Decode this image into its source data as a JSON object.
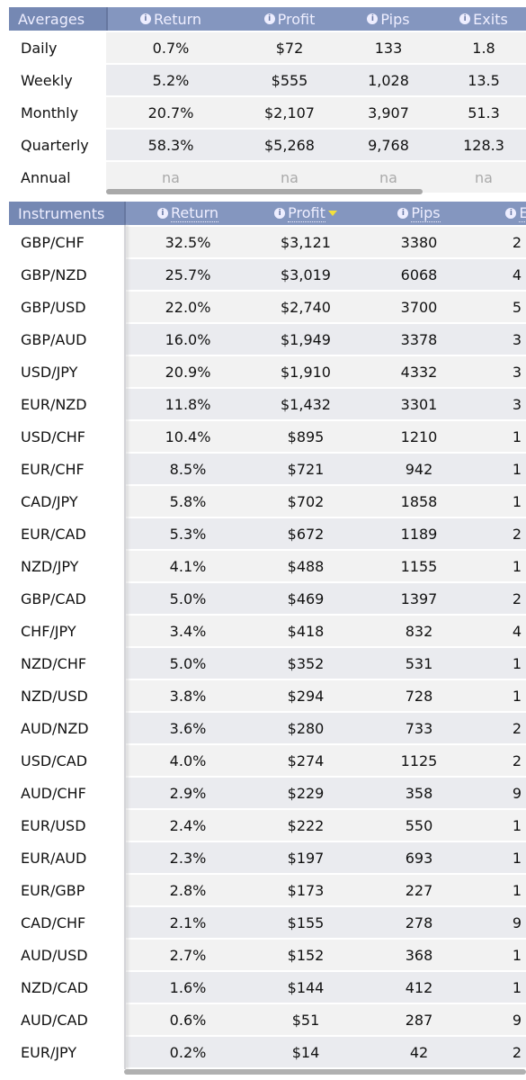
{
  "averages": {
    "columns": [
      "Averages",
      "Return",
      "Profit",
      "Pips",
      "Exits"
    ],
    "rows": [
      [
        "Daily",
        "0.7%",
        "$72",
        "133",
        "1.8"
      ],
      [
        "Weekly",
        "5.2%",
        "$555",
        "1,028",
        "13.5"
      ],
      [
        "Monthly",
        "20.7%",
        "$2,107",
        "3,907",
        "51.3"
      ],
      [
        "Quarterly",
        "58.3%",
        "$5,268",
        "9,768",
        "128.3"
      ],
      [
        "Annual",
        "na",
        "na",
        "na",
        "na"
      ]
    ]
  },
  "instruments": {
    "columns": [
      "Instruments",
      "Return",
      "Profit",
      "Pips",
      "E"
    ],
    "rows": [
      [
        "GBP/CHF",
        "32.5%",
        "$3,121",
        "3380",
        "2"
      ],
      [
        "GBP/NZD",
        "25.7%",
        "$3,019",
        "6068",
        "4"
      ],
      [
        "GBP/USD",
        "22.0%",
        "$2,740",
        "3700",
        "5"
      ],
      [
        "GBP/AUD",
        "16.0%",
        "$1,949",
        "3378",
        "3"
      ],
      [
        "USD/JPY",
        "20.9%",
        "$1,910",
        "4332",
        "3"
      ],
      [
        "EUR/NZD",
        "11.8%",
        "$1,432",
        "3301",
        "3"
      ],
      [
        "USD/CHF",
        "10.4%",
        "$895",
        "1210",
        "1"
      ],
      [
        "EUR/CHF",
        "8.5%",
        "$721",
        "942",
        "1"
      ],
      [
        "CAD/JPY",
        "5.8%",
        "$702",
        "1858",
        "1"
      ],
      [
        "EUR/CAD",
        "5.3%",
        "$672",
        "1189",
        "2"
      ],
      [
        "NZD/JPY",
        "4.1%",
        "$488",
        "1155",
        "1"
      ],
      [
        "GBP/CAD",
        "5.0%",
        "$469",
        "1397",
        "2"
      ],
      [
        "CHF/JPY",
        "3.4%",
        "$418",
        "832",
        "4"
      ],
      [
        "NZD/CHF",
        "5.0%",
        "$352",
        "531",
        "1"
      ],
      [
        "NZD/USD",
        "3.8%",
        "$294",
        "728",
        "1"
      ],
      [
        "AUD/NZD",
        "3.6%",
        "$280",
        "733",
        "2"
      ],
      [
        "USD/CAD",
        "4.0%",
        "$274",
        "1125",
        "2"
      ],
      [
        "AUD/CHF",
        "2.9%",
        "$229",
        "358",
        "9"
      ],
      [
        "EUR/USD",
        "2.4%",
        "$222",
        "550",
        "1"
      ],
      [
        "EUR/AUD",
        "2.3%",
        "$197",
        "693",
        "1"
      ],
      [
        "EUR/GBP",
        "2.8%",
        "$173",
        "227",
        "1"
      ],
      [
        "CAD/CHF",
        "2.1%",
        "$155",
        "278",
        "9"
      ],
      [
        "AUD/USD",
        "2.7%",
        "$152",
        "368",
        "1"
      ],
      [
        "NZD/CAD",
        "1.6%",
        "$144",
        "412",
        "1"
      ],
      [
        "AUD/CAD",
        "0.6%",
        "$51",
        "287",
        "9"
      ],
      [
        "EUR/JPY",
        "0.2%",
        "$14",
        "42",
        "2"
      ]
    ]
  }
}
